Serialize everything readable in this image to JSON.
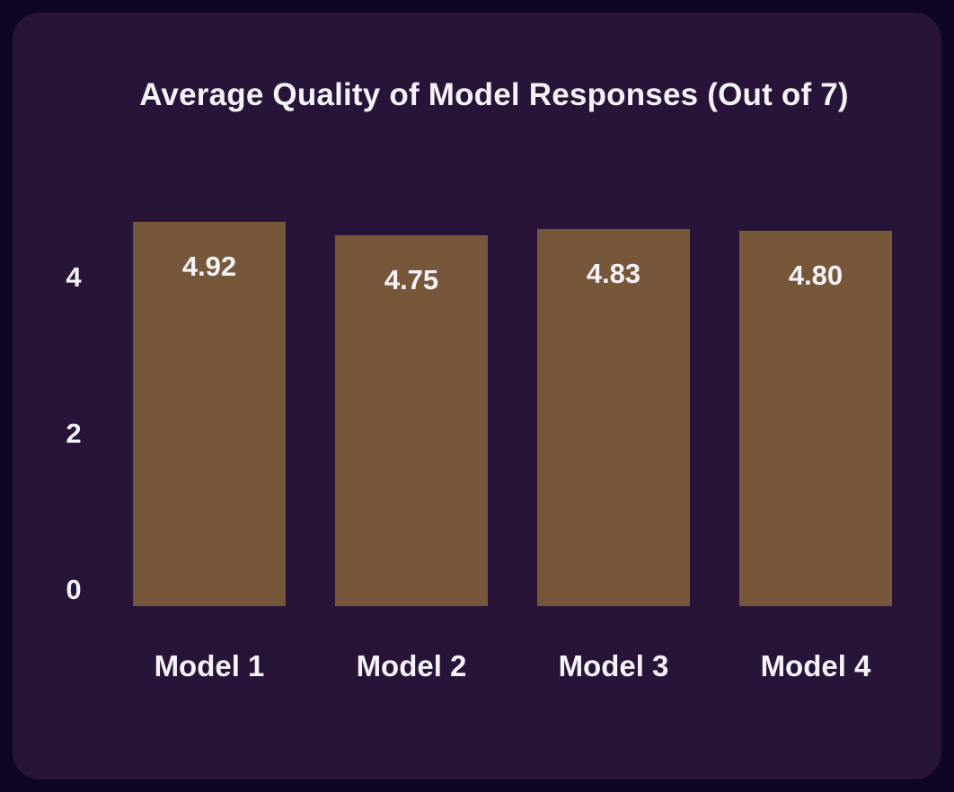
{
  "colors": {
    "outer_background": "#0f0527",
    "card_background": "#271438",
    "bar_fill": "#77573a",
    "text": "#f5f2f8"
  },
  "chart_data": {
    "type": "bar",
    "title": "Average Quality of Model Responses (Out of 7)",
    "categories": [
      "Model 1",
      "Model 2",
      "Model 3",
      "Model 4"
    ],
    "values": [
      4.92,
      4.75,
      4.83,
      4.8
    ],
    "value_labels": [
      "4.92",
      "4.75",
      "4.83",
      "4.80"
    ],
    "xlabel": "",
    "ylabel": "",
    "yticks": [
      0,
      2,
      4
    ],
    "ylim": [
      0,
      5
    ],
    "grid": false,
    "legend": false,
    "orientation": "vertical",
    "bar_label_position": "inside-top"
  }
}
